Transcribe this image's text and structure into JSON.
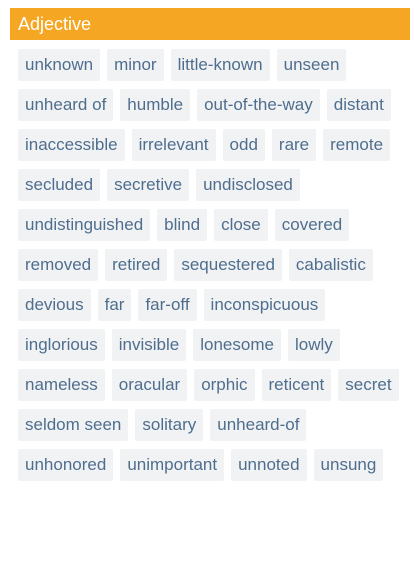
{
  "header": {
    "title": "Adjective"
  },
  "words": [
    "unknown",
    "minor",
    "little-known",
    "unseen",
    "unheard of",
    "humble",
    "out-of-the-way",
    "distant",
    "inaccessible",
    "irrelevant",
    "odd",
    "rare",
    "remote",
    "secluded",
    "secretive",
    "undisclosed",
    "undistinguished",
    "blind",
    "close",
    "covered",
    "removed",
    "retired",
    "sequestered",
    "cabalistic",
    "devious",
    "far",
    "far-off",
    "inconspicuous",
    "inglorious",
    "invisible",
    "lonesome",
    "lowly",
    "nameless",
    "oracular",
    "orphic",
    "reticent",
    "secret",
    "seldom seen",
    "solitary",
    "unheard-of",
    "unhonored",
    "unimportant",
    "unnoted",
    "unsung"
  ],
  "colors": {
    "header_bg": "#f5a623",
    "header_text": "#ffffff",
    "tag_bg": "#f1f2f4",
    "tag_text": "#4f6e8e"
  }
}
